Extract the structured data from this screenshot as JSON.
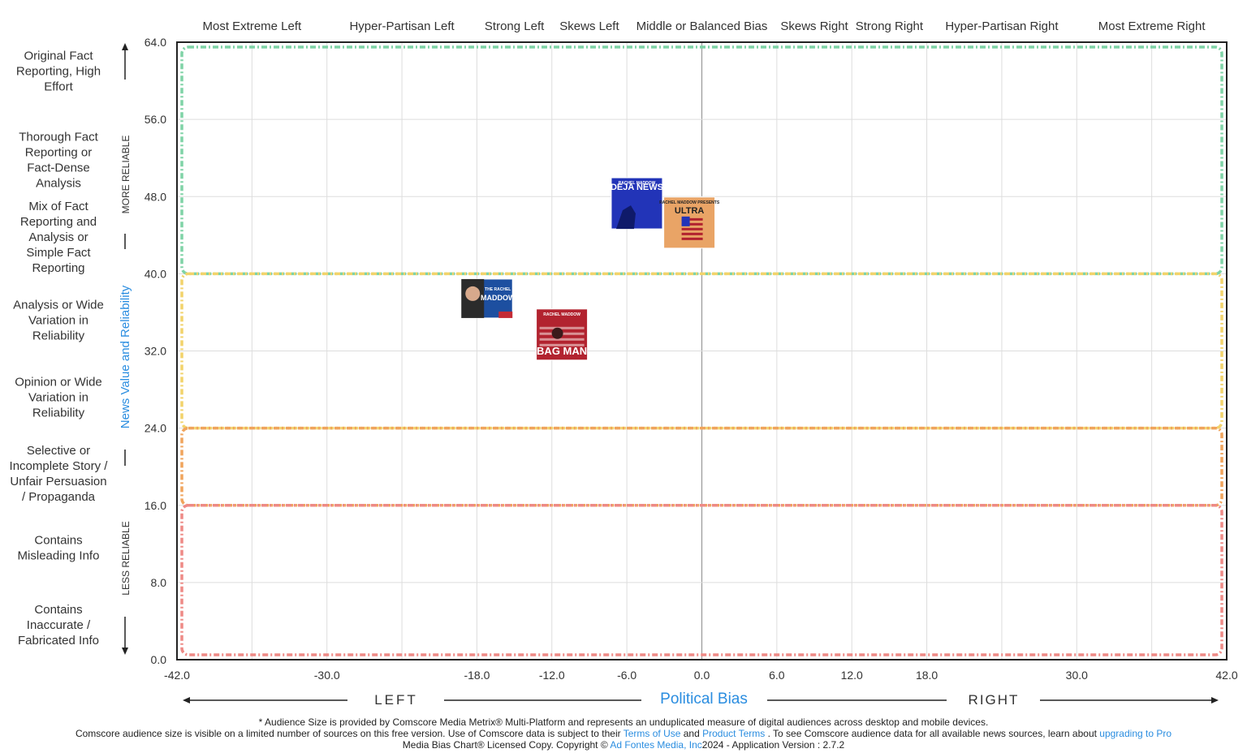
{
  "chart_data": {
    "type": "scatter",
    "xlim": [
      -42,
      42
    ],
    "ylim": [
      0,
      64
    ],
    "x_ticks": [
      "-42.0",
      "-30.0",
      "-18.0",
      "-12.0",
      "-6.0",
      "0.0",
      "6.0",
      "12.0",
      "18.0",
      "30.0",
      "42.0"
    ],
    "x_tick_values": [
      -42,
      -30,
      -18,
      -12,
      -6,
      0,
      6,
      12,
      18,
      30,
      42
    ],
    "y_ticks": [
      "0.0",
      "8.0",
      "16.0",
      "24.0",
      "32.0",
      "40.0",
      "48.0",
      "56.0",
      "64.0"
    ],
    "y_tick_values": [
      0,
      8,
      16,
      24,
      32,
      40,
      48,
      56,
      64
    ],
    "grid": true,
    "xlabel": "Political Bias",
    "ylabel": "News Value and Reliability",
    "x_direction_labels": {
      "left": "LEFT",
      "right": "RIGHT"
    },
    "y_direction_labels": {
      "top": "MORE RELIABLE",
      "bottom": "LESS RELIABLE"
    },
    "top_categories": [
      {
        "label": "Most Extreme Left",
        "x": -36
      },
      {
        "label": "Hyper-Partisan Left",
        "x": -24
      },
      {
        "label": "Strong Left",
        "x": -15
      },
      {
        "label": "Skews Left",
        "x": -9
      },
      {
        "label": "Middle or Balanced Bias",
        "x": 0
      },
      {
        "label": "Skews Right",
        "x": 9
      },
      {
        "label": "Strong Right",
        "x": 15
      },
      {
        "label": "Hyper-Partisan Right",
        "x": 24
      },
      {
        "label": "Most Extreme Right",
        "x": 36
      }
    ],
    "left_categories": [
      {
        "label": [
          "Original Fact",
          "Reporting, High",
          "Effort"
        ],
        "y": 61
      },
      {
        "label": [
          "Thorough Fact",
          "Reporting or",
          "Fact-Dense",
          "Analysis"
        ],
        "y": 51.8
      },
      {
        "label": [
          "Mix of Fact",
          "Reporting and",
          "Analysis or",
          "Simple Fact",
          "Reporting"
        ],
        "y": 43.8
      },
      {
        "label": [
          "Analysis or Wide",
          "Variation in",
          "Reliability"
        ],
        "y": 35.2
      },
      {
        "label": [
          "Opinion or Wide",
          "Variation in",
          "Reliability"
        ],
        "y": 27.2
      },
      {
        "label": [
          "Selective or",
          "Incomplete Story /",
          "Unfair Persuasion",
          "/ Propaganda"
        ],
        "y": 19.3
      },
      {
        "label": [
          "Contains",
          "Misleading Info"
        ],
        "y": 11.6
      },
      {
        "label": [
          "Contains",
          "Inaccurate /",
          "Fabricated Info"
        ],
        "y": 3.6
      }
    ],
    "zones": [
      {
        "name": "green",
        "ymin": 40,
        "ymax": 64,
        "color": "#7fd3a6"
      },
      {
        "name": "yellow",
        "ymin": 24,
        "ymax": 40,
        "color": "#f2d36b"
      },
      {
        "name": "orange",
        "ymin": 16,
        "ymax": 24,
        "color": "#f0a45c"
      },
      {
        "name": "red",
        "ymin": 0,
        "ymax": 16,
        "color": "#ee8a86"
      }
    ],
    "points": [
      {
        "x": -5.2,
        "y": 47.3,
        "logo": {
          "kicker": "RACHEL MADDOW",
          "title": "DEJA NEWS",
          "bg": "#2234b8",
          "fg": "#ffffff"
        }
      },
      {
        "x": -1.0,
        "y": 45.3,
        "logo": {
          "kicker": "RACHEL MADDOW PRESENTS",
          "title": "ULTRA",
          "bg": "#e9a466",
          "fg": "#222222"
        }
      },
      {
        "x": -17.2,
        "y": 36.8,
        "logo": {
          "kicker": "THE RACHEL",
          "title": "MADDOW",
          "bg": "#1d4fa0",
          "fg": "#ffffff"
        }
      },
      {
        "x": -11.2,
        "y": 33.7,
        "logo": {
          "kicker": "RACHEL MADDOW",
          "title": "BAG MAN",
          "bg": "#b2232f",
          "fg": "#ffffff"
        }
      }
    ]
  },
  "footer": {
    "line1": "* Audience Size is provided by Comscore Media Metrix® Multi-Platform and represents an unduplicated measure of digital audiences across desktop and mobile devices.",
    "line2_a": "Comscore audience size is visible on a limited number of sources on this free version. Use of Comscore data is subject to their ",
    "line2_link1": "Terms of Use",
    "line2_b": " and ",
    "line2_link2": "Product Terms",
    "line2_c": " . To see Comscore audience data for all available news sources, learn about ",
    "line2_link3": "upgrading to Pro",
    "line3_a": "Media Bias Chart® Licensed Copy. Copyright © ",
    "line3_link": "Ad Fontes Media, Inc",
    "line3_b": "2024 - Application Version : 2.7.2"
  },
  "colors": {
    "accent": "#2a8de0",
    "grid": "#dddddd",
    "axis": "#222222",
    "center_line": "#999999"
  }
}
